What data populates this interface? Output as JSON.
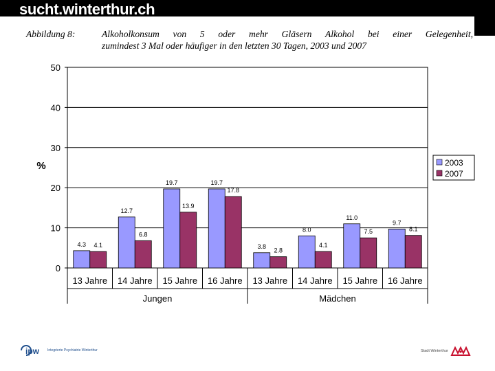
{
  "header": {
    "site_title": "sucht.winterthur.ch"
  },
  "caption": {
    "label": "Abbildung 8:",
    "line1": "Alkoholkonsum von 5 oder mehr Gläsern Alkohol bei einer Gelegenheit,",
    "line2": "zumindest 3 Mal oder häufiger in den letzten 30 Tagen, 2003 und 2007"
  },
  "chart_data": {
    "type": "bar",
    "categories": [
      "13 Jahre",
      "14 Jahre",
      "15 Jahre",
      "16 Jahre",
      "13 Jahre",
      "14 Jahre",
      "15 Jahre",
      "16 Jahre"
    ],
    "groups": [
      {
        "label": "Jungen",
        "categories": [
          "13 Jahre",
          "14 Jahre",
          "15 Jahre",
          "16 Jahre"
        ]
      },
      {
        "label": "Mädchen",
        "categories": [
          "13 Jahre",
          "14 Jahre",
          "15 Jahre",
          "16 Jahre"
        ]
      }
    ],
    "series": [
      {
        "name": "2003",
        "color": "#9999ff",
        "values": [
          4.3,
          12.7,
          19.7,
          19.7,
          3.8,
          8.0,
          11.0,
          9.7
        ],
        "labels": [
          "4.3",
          "12.7",
          "19.7",
          "19.7",
          "3.8",
          "8.0",
          "11.0",
          "9.7"
        ]
      },
      {
        "name": "2007",
        "color": "#993366",
        "values": [
          4.1,
          6.8,
          13.9,
          17.8,
          2.8,
          4.1,
          7.5,
          8.1
        ],
        "labels": [
          "4.1",
          "6.8",
          "13.9",
          "17.8",
          "2.8",
          "4.1",
          "7.5",
          "8.1"
        ]
      }
    ],
    "ylabel": "%",
    "ylim": [
      0,
      50
    ],
    "yticks": [
      "0",
      "10",
      "20",
      "30",
      "40",
      "50"
    ],
    "grid": true,
    "legend": "right"
  },
  "footer": {
    "left_logo": "ipw",
    "left_text": "Integrierte Psychiatrie Winterthur",
    "right_text": "Stadt Winterthur",
    "right_logo": "winterthur-lions-logo"
  }
}
